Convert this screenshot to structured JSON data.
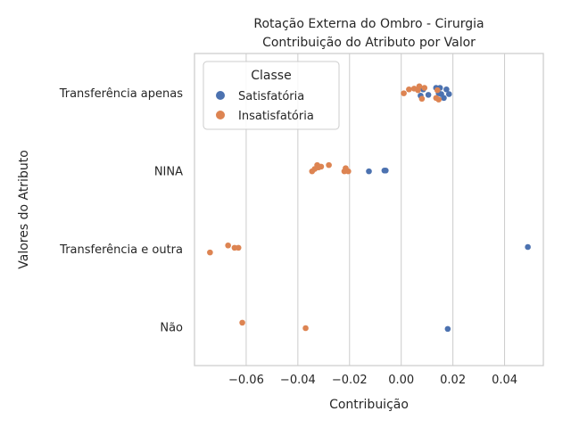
{
  "chart_data": {
    "type": "scatter",
    "title": "Rotação Externa do Ombro - Cirurgia",
    "subtitle": "Contribuição do Atributo por Valor",
    "xlabel": "Contribuição",
    "ylabel": "Valores do Atributo",
    "xlim": [
      -0.08,
      0.055
    ],
    "x_ticks": [
      -0.06,
      -0.04,
      -0.02,
      0.0,
      0.02,
      0.04
    ],
    "x_tick_labels": [
      "−0.06",
      "−0.04",
      "−0.02",
      "0.00",
      "0.02",
      "0.04"
    ],
    "categories": [
      "Transferência apenas",
      "NINA",
      "Transferência e outra",
      "Não"
    ],
    "grid": "vertical",
    "legend": {
      "title": "Classe",
      "placement": "top-left",
      "entries": [
        "Satisfatória",
        "Insatisfatória"
      ]
    },
    "colors": {
      "Satisfatória": "#4c72b0",
      "Insatisfatória": "#dd8452"
    },
    "series": [
      {
        "name": "Satisfatória",
        "points": [
          {
            "category": "Transferência apenas",
            "x": 0.0075,
            "jitter": 0.04
          },
          {
            "category": "Transferência apenas",
            "x": 0.0085,
            "jitter": -0.04
          },
          {
            "category": "Transferência apenas",
            "x": 0.0105,
            "jitter": 0.03
          },
          {
            "category": "Transferência apenas",
            "x": 0.0135,
            "jitter": -0.06
          },
          {
            "category": "Transferência apenas",
            "x": 0.0145,
            "jitter": 0.01
          },
          {
            "category": "Transferência apenas",
            "x": 0.015,
            "jitter": -0.06
          },
          {
            "category": "Transferência apenas",
            "x": 0.0155,
            "jitter": 0.02
          },
          {
            "category": "Transferência apenas",
            "x": 0.0165,
            "jitter": 0.07
          },
          {
            "category": "Transferência apenas",
            "x": 0.0175,
            "jitter": -0.04
          },
          {
            "category": "Transferência apenas",
            "x": 0.0185,
            "jitter": 0.02
          },
          {
            "category": "NINA",
            "x": -0.0125,
            "jitter": 0.01
          },
          {
            "category": "NINA",
            "x": -0.0065,
            "jitter": 0.0
          },
          {
            "category": "NINA",
            "x": -0.006,
            "jitter": 0.0
          },
          {
            "category": "Transferência e outra",
            "x": 0.049,
            "jitter": -0.02
          },
          {
            "category": "Não",
            "x": 0.018,
            "jitter": 0.03
          }
        ]
      },
      {
        "name": "Insatisfatória",
        "points": [
          {
            "category": "Transferência apenas",
            "x": 0.001,
            "jitter": 0.01
          },
          {
            "category": "Transferência apenas",
            "x": 0.003,
            "jitter": -0.04
          },
          {
            "category": "Transferência apenas",
            "x": 0.005,
            "jitter": -0.05
          },
          {
            "category": "Transferência apenas",
            "x": 0.0065,
            "jitter": -0.03
          },
          {
            "category": "Transferência apenas",
            "x": 0.007,
            "jitter": -0.08
          },
          {
            "category": "Transferência apenas",
            "x": 0.008,
            "jitter": 0.08
          },
          {
            "category": "Transferência apenas",
            "x": 0.009,
            "jitter": -0.06
          },
          {
            "category": "Transferência apenas",
            "x": 0.0135,
            "jitter": 0.07
          },
          {
            "category": "Transferência apenas",
            "x": 0.014,
            "jitter": -0.03
          },
          {
            "category": "Transferência apenas",
            "x": 0.0145,
            "jitter": 0.09
          },
          {
            "category": "NINA",
            "x": -0.0345,
            "jitter": 0.01
          },
          {
            "category": "NINA",
            "x": -0.0335,
            "jitter": -0.02
          },
          {
            "category": "NINA",
            "x": -0.0325,
            "jitter": -0.07
          },
          {
            "category": "NINA",
            "x": -0.032,
            "jitter": -0.04
          },
          {
            "category": "NINA",
            "x": -0.031,
            "jitter": -0.05
          },
          {
            "category": "NINA",
            "x": -0.028,
            "jitter": -0.07
          },
          {
            "category": "NINA",
            "x": -0.022,
            "jitter": 0.01
          },
          {
            "category": "NINA",
            "x": -0.0215,
            "jitter": -0.03
          },
          {
            "category": "NINA",
            "x": -0.0205,
            "jitter": 0.01
          },
          {
            "category": "Transferência e outra",
            "x": -0.074,
            "jitter": 0.05
          },
          {
            "category": "Transferência e outra",
            "x": -0.067,
            "jitter": -0.04
          },
          {
            "category": "Transferência e outra",
            "x": -0.0645,
            "jitter": -0.01
          },
          {
            "category": "Transferência e outra",
            "x": -0.063,
            "jitter": -0.01
          },
          {
            "category": "Não",
            "x": -0.037,
            "jitter": 0.02
          },
          {
            "category": "Não",
            "x": -0.0615,
            "jitter": -0.05
          }
        ]
      }
    ]
  }
}
